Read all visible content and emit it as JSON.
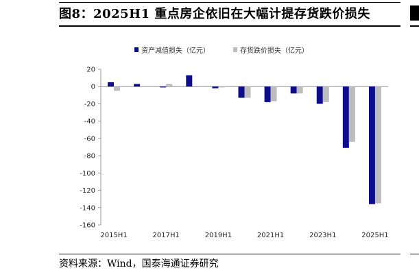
{
  "figure": {
    "title": "图8：2025H1 重点房企依旧在大幅计提存货跌价损失",
    "source": "资料来源：Wind，国泰海通证券研究"
  },
  "colors": {
    "series1": "#0d0d8a",
    "series2": "#bdbdbd",
    "axis": "#999999"
  },
  "chart_data": {
    "type": "bar",
    "categories": [
      "2015H1",
      "2016H1",
      "2017H1",
      "2018H1",
      "2019H1",
      "2020H1",
      "2021H1",
      "2022H1",
      "2023H1",
      "2024H1",
      "2025H1"
    ],
    "x_tick_labels": [
      "2015H1",
      "2017H1",
      "2019H1",
      "2021H1",
      "2023H1",
      "2025H1"
    ],
    "series": [
      {
        "name": "资产减值损失（亿元）",
        "values": [
          5,
          3,
          -1,
          13,
          -2,
          -13,
          -18,
          -8,
          -20,
          -71,
          -136
        ]
      },
      {
        "name": "存货跌价损失（亿元）",
        "values": [
          -5,
          0,
          3,
          0,
          -1,
          -13,
          -17,
          -8,
          -18,
          -64,
          -135
        ]
      }
    ],
    "ylim": [
      -160,
      20
    ],
    "yticks": [
      20,
      0,
      -20,
      -40,
      -60,
      -80,
      -100,
      -120,
      -140,
      -160
    ],
    "legend_position": "top-center",
    "grid": false
  }
}
